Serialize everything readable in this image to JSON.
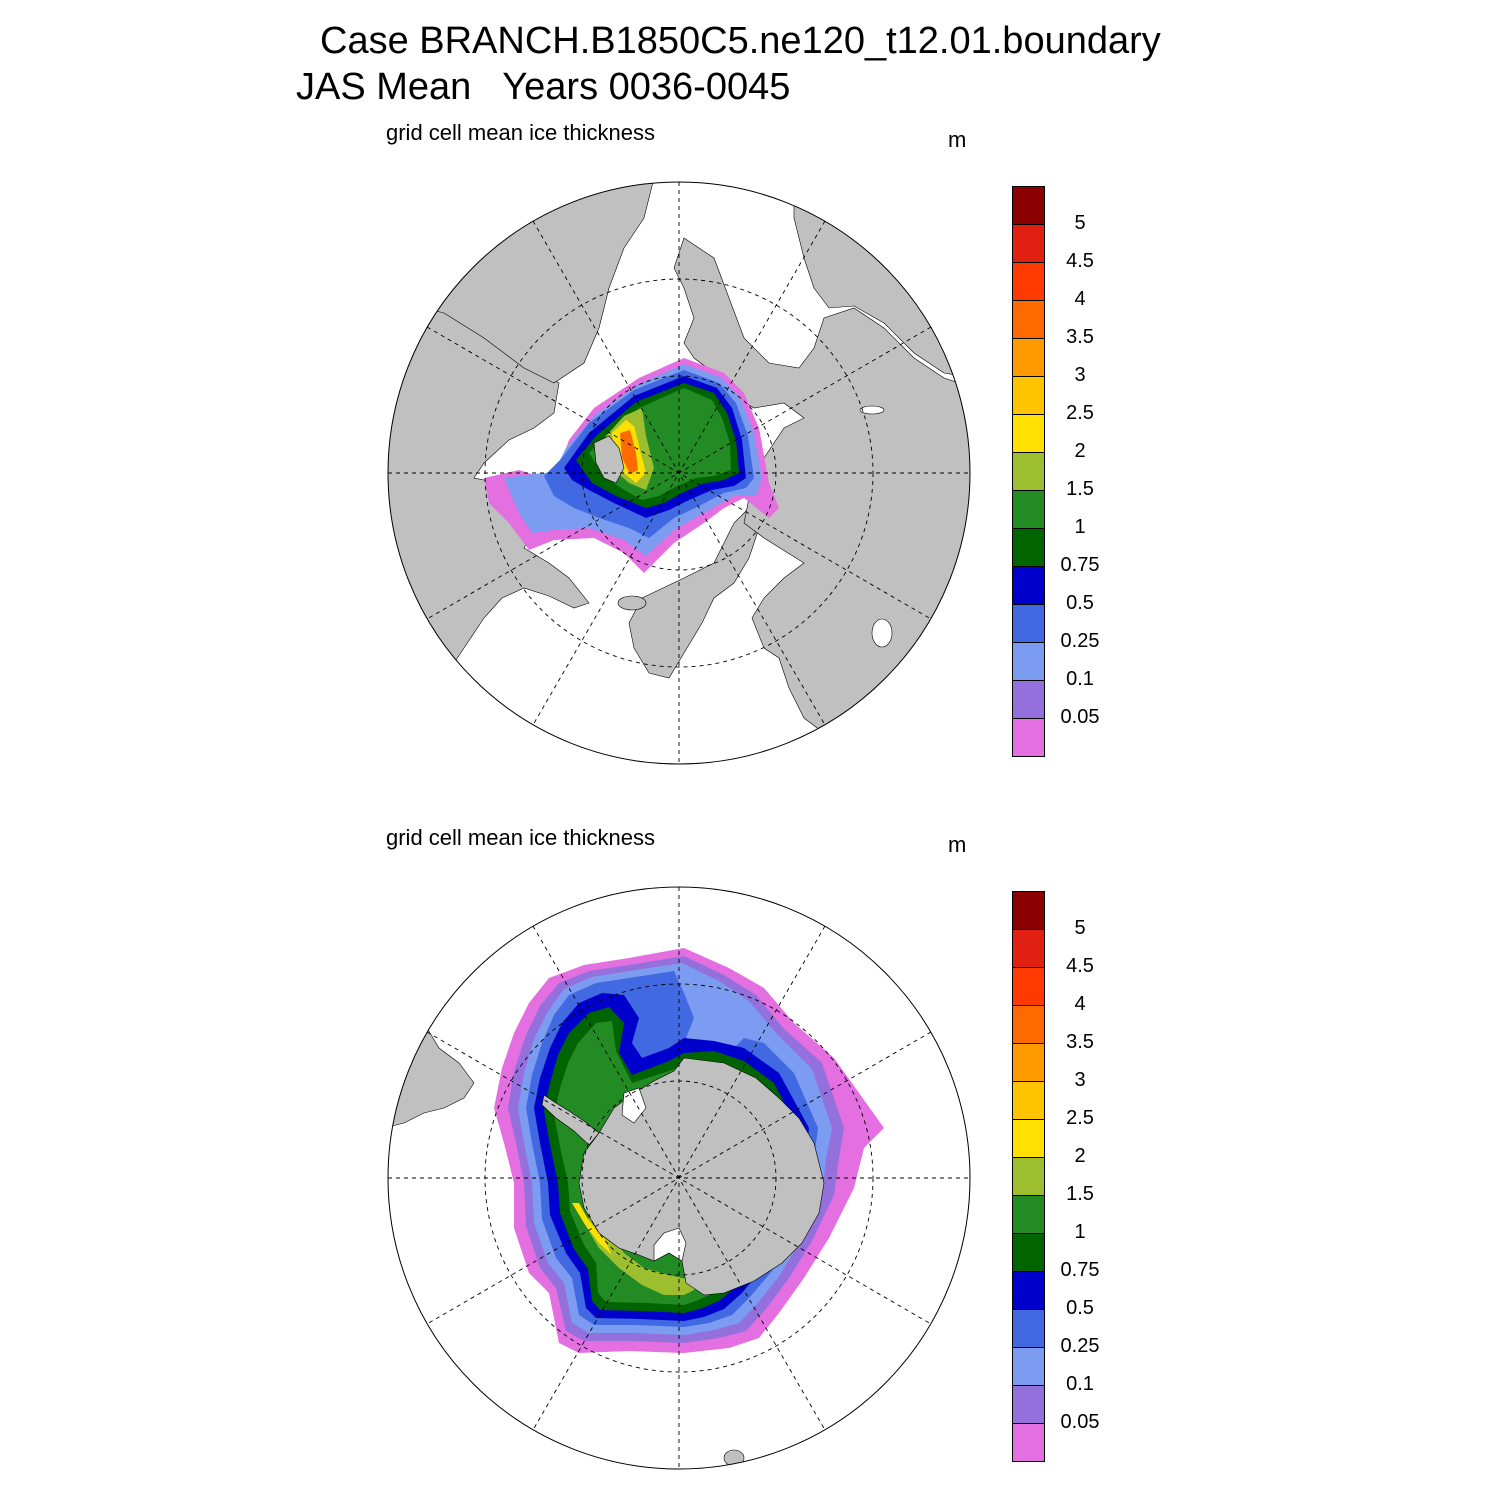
{
  "title": {
    "line1": "Case BRANCH.B1850C5.ne120_t12.01.boundary",
    "line2": "JAS Mean   Years 0036-0045"
  },
  "panels": [
    {
      "id": "north",
      "left_string": "grid cell mean ice thickness",
      "right_string": "m"
    },
    {
      "id": "south",
      "left_string": "grid cell mean ice thickness",
      "right_string": "m"
    }
  ],
  "colorbar": {
    "units": "m",
    "labels": [
      "5",
      "4.5",
      "4",
      "3.5",
      "3",
      "2.5",
      "2",
      "1.5",
      "1",
      "0.75",
      "0.5",
      "0.25",
      "0.1",
      "0.05"
    ],
    "colors_top_to_bottom": [
      "#8b0000",
      "#e02010",
      "#ff3a00",
      "#ff6a00",
      "#ff9a00",
      "#ffc400",
      "#ffe000",
      "#9dbf2f",
      "#238b23",
      "#006400",
      "#0000cd",
      "#4169e1",
      "#7b9cf0",
      "#9370db",
      "#e46fe0"
    ]
  },
  "map_style": {
    "land_color": "#c0c0c0",
    "ocean_color": "#ffffff",
    "gridline_style": "dashed"
  }
}
